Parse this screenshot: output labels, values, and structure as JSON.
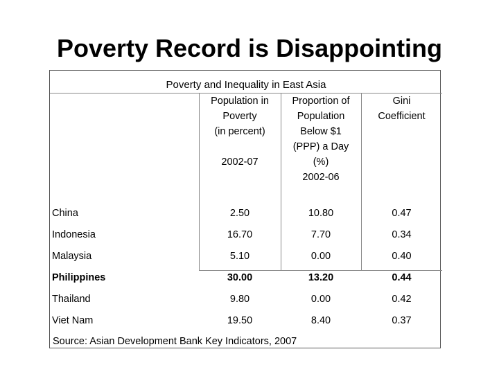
{
  "slide": {
    "title": "Poverty Record is Disappointing"
  },
  "table": {
    "caption": "Poverty and Inequality in East Asia",
    "columns": [
      {
        "header": "Population in\nPoverty\n(in percent)\n\n2002-07"
      },
      {
        "header": "Proportion of\nPopulation\nBelow $1\n(PPP) a Day\n(%)\n2002-06"
      },
      {
        "header": "Gini\nCoefficient"
      }
    ],
    "rows": [
      {
        "country": "China",
        "poverty": "2.50",
        "below_1": "10.80",
        "gini": "0.47",
        "bold": false
      },
      {
        "country": "Indonesia",
        "poverty": "16.70",
        "below_1": "7.70",
        "gini": "0.34",
        "bold": false
      },
      {
        "country": "Malaysia",
        "poverty": "5.10",
        "below_1": "0.00",
        "gini": "0.40",
        "bold": false
      },
      {
        "country": "Philippines",
        "poverty": "30.00",
        "below_1": "13.20",
        "gini": "0.44",
        "bold": true
      },
      {
        "country": "Thailand",
        "poverty": "9.80",
        "below_1": "0.00",
        "gini": "0.42",
        "bold": false
      },
      {
        "country": "Viet Nam",
        "poverty": "19.50",
        "below_1": "8.40",
        "gini": "0.37",
        "bold": false
      }
    ],
    "source": "Source: Asian Development Bank Key Indicators, 2007"
  }
}
